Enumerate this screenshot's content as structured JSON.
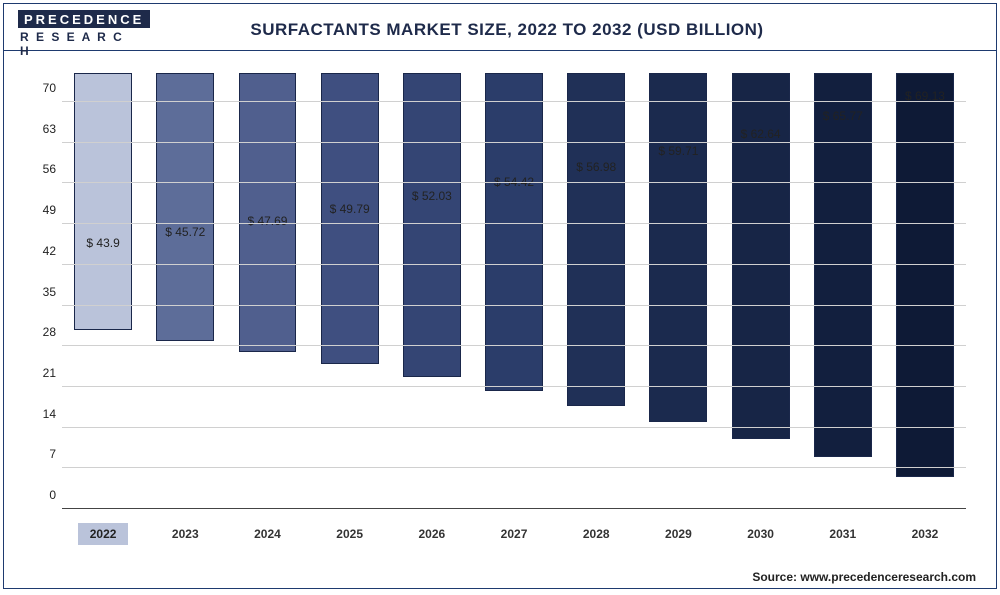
{
  "logo": {
    "top": "PRECEDENCE",
    "bottom": "R E S E A R C H"
  },
  "title": "SURFACTANTS MARKET SIZE, 2022 TO 2032 (USD BILLION)",
  "source_label": "Source: www.precedenceresearch.com",
  "chart": {
    "type": "bar",
    "ylim": [
      0,
      75
    ],
    "ytick_step": 7,
    "y_ticks": [
      0,
      7,
      14,
      21,
      28,
      35,
      42,
      49,
      56,
      63,
      70
    ],
    "grid_color": "#d0d0d0",
    "background_color": "#ffffff",
    "value_prefix": "$ ",
    "highlight_category": "2022",
    "bar_border_color": "#1a274a",
    "title_fontsize": 17,
    "label_fontsize": 12,
    "bars": [
      {
        "category": "2022",
        "value": 43.9,
        "label": "$ 43.9",
        "color": "#bac3da"
      },
      {
        "category": "2023",
        "value": 45.72,
        "label": "$ 45.72",
        "color": "#5d6d99"
      },
      {
        "category": "2024",
        "value": 47.69,
        "label": "$ 47.69",
        "color": "#505f8e"
      },
      {
        "category": "2025",
        "value": 49.79,
        "label": "$ 49.79",
        "color": "#3f4f80"
      },
      {
        "category": "2026",
        "value": 52.03,
        "label": "$ 52.03",
        "color": "#344574"
      },
      {
        "category": "2027",
        "value": 54.42,
        "label": "$ 54.42",
        "color": "#2b3d6a"
      },
      {
        "category": "2028",
        "value": 56.98,
        "label": "$ 56.98",
        "color": "#203057"
      },
      {
        "category": "2029",
        "value": 59.71,
        "label": "$ 59.71",
        "color": "#1b2a4e"
      },
      {
        "category": "2030",
        "value": 62.64,
        "label": "$ 62.64",
        "color": "#172546"
      },
      {
        "category": "2031",
        "value": 65.77,
        "label": "$ 65.77",
        "color": "#121f3e"
      },
      {
        "category": "2032",
        "value": 69.13,
        "label": "$ 69.13",
        "color": "#0e1a36"
      }
    ]
  }
}
